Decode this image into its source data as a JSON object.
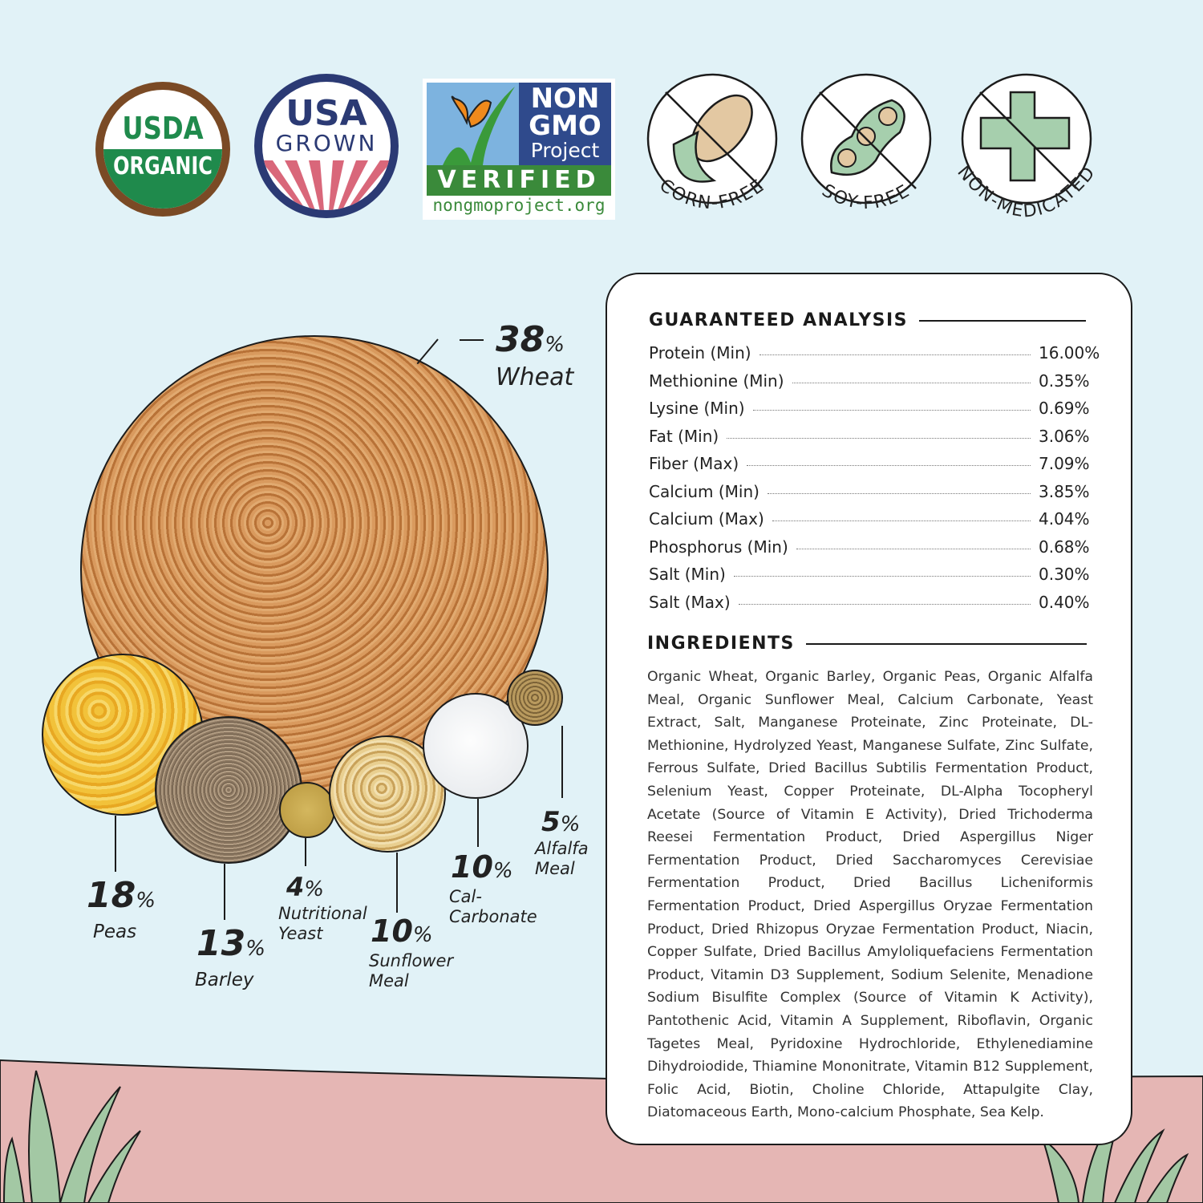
{
  "badges": {
    "usda": {
      "line1": "USDA",
      "line2": "ORGANIC"
    },
    "usa_grown": {
      "line1": "USA",
      "line2": "GROWN"
    },
    "non_gmo": {
      "line1": "NON",
      "line2": "GMO",
      "line3": "Project",
      "verified": "VERIFIED",
      "url": "nongmoproject.org"
    },
    "corn_free": "CORN-FREE",
    "soy_free": "SOY-FREE",
    "non_medicated": "NON-MEDICATED"
  },
  "composition": [
    {
      "name": "Wheat",
      "percent": 38,
      "pct_label": "38"
    },
    {
      "name": "Peas",
      "percent": 18,
      "pct_label": "18"
    },
    {
      "name": "Barley",
      "percent": 13,
      "pct_label": "13"
    },
    {
      "name": "Nutritional Yeast",
      "percent": 4,
      "pct_label": "4",
      "line1": "Nutritional",
      "line2": "Yeast"
    },
    {
      "name": "Sunflower Meal",
      "percent": 10,
      "pct_label": "10",
      "line1": "Sunflower",
      "line2": "Meal"
    },
    {
      "name": "Cal-Carbonate",
      "percent": 10,
      "pct_label": "10",
      "line1": "Cal-",
      "line2": "Carbonate"
    },
    {
      "name": "Alfalfa Meal",
      "percent": 5,
      "pct_label": "5",
      "line1": "Alfalfa",
      "line2": "Meal"
    }
  ],
  "percent_sign": "%",
  "analysis": {
    "title": "GUARANTEED ANALYSIS",
    "rows": [
      {
        "label": "Protein (Min)",
        "value": "16.00%"
      },
      {
        "label": "Methionine (Min)",
        "value": "0.35%"
      },
      {
        "label": "Lysine (Min)",
        "value": "0.69%"
      },
      {
        "label": "Fat (Min)",
        "value": "3.06%"
      },
      {
        "label": "Fiber (Max)",
        "value": "7.09%"
      },
      {
        "label": "Calcium (Min)",
        "value": "3.85%"
      },
      {
        "label": "Calcium (Max)",
        "value": "4.04%"
      },
      {
        "label": "Phosphorus (Min)",
        "value": "0.68%"
      },
      {
        "label": "Salt (Min)",
        "value": "0.30%"
      },
      {
        "label": "Salt (Max)",
        "value": "0.40%"
      }
    ]
  },
  "ingredients": {
    "title": "INGREDIENTS",
    "text": "Organic Wheat, Organic Barley, Organic Peas, Organic Alfalfa Meal, Organic Sunflower Meal, Calcium Carbonate, Yeast Extract, Salt, Manganese Proteinate, Zinc Proteinate, DL-Methionine, Hydrolyzed Yeast, Manganese Sulfate, Zinc Sulfate, Ferrous Sulfate, Dried Bacillus Subtilis Fermentation Product, Selenium Yeast, Copper Proteinate, DL-Alpha Tocopheryl Acetate (Source of Vitamin E Activity), Dried Trichoderma Reesei Fermentation Product, Dried Aspergillus Niger Fermentation Product, Dried Saccharomyces Cerevisiae Fermentation Product, Dried Bacillus Licheniformis Fermentation Product, Dried Aspergillus Oryzae Fermentation Product, Dried Rhizopus Oryzae Fermentation Product, Niacin, Copper Sulfate, Dried Bacillus Amyloliquefaciens Fermentation Product, Vitamin D3 Supplement, Sodium Selenite, Menadione Sodium Bisulfite Complex (Source of Vitamin K Activity), Pantothenic Acid, Vitamin A Supplement, Riboflavin, Organic Tagetes Meal, Pyridoxine Hydrochloride, Ethylenediamine Dihydroiodide, Thiamine Mononitrate, Vitamin B12 Supplement, Folic Acid, Biotin, Choline Chloride, Attapulgite Clay, Diatomaceous Earth, Mono-calcium Phosphate, Sea Kelp."
  },
  "colors": {
    "background": "#e1f2f7",
    "ground": "#e5b6b4",
    "grass": "#a3c8a4",
    "usda_green": "#1f8a4c",
    "usda_brown": "#7a4a25",
    "usa_navy": "#2b3a74",
    "usa_red": "#d9677a",
    "icon_green": "#a6cfad"
  }
}
